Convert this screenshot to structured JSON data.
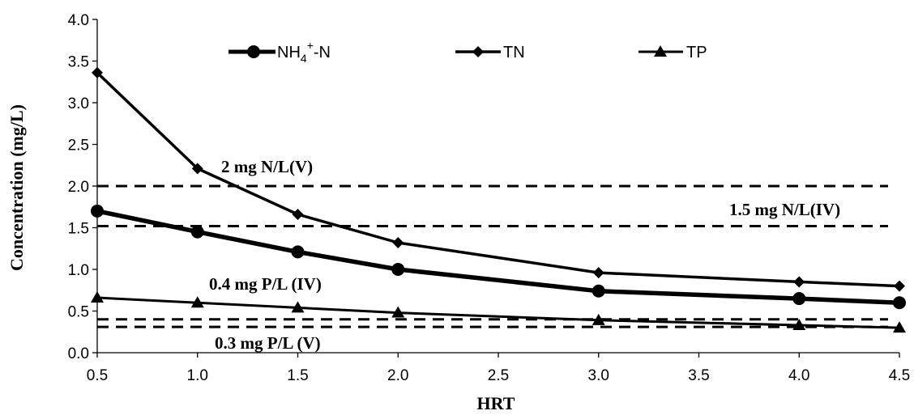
{
  "chart_data": {
    "type": "line",
    "xlabel": "HRT",
    "ylabel": "Concentration (mg/L)",
    "xlim": [
      0.5,
      4.5
    ],
    "ylim": [
      0.0,
      4.0
    ],
    "x_ticks": [
      "0.5",
      "1.0",
      "1.5",
      "2.0",
      "2.5",
      "3.0",
      "3.5",
      "4.0",
      "4.5"
    ],
    "y_ticks": [
      "0.0",
      "0.5",
      "1.0",
      "1.5",
      "2.0",
      "2.5",
      "3.0",
      "3.5",
      "4.0"
    ],
    "grid": false,
    "legend_position": "top",
    "series": [
      {
        "key": "nh4",
        "name": "NH4+-N",
        "marker": "circle",
        "line_weight": "thick",
        "x": [
          0.5,
          1.0,
          1.5,
          2.0,
          3.0,
          4.0,
          4.5
        ],
        "y": [
          1.7,
          1.45,
          1.21,
          1.0,
          0.74,
          0.65,
          0.6
        ]
      },
      {
        "key": "tn",
        "name": "TN",
        "marker": "diamond",
        "line_weight": "medium",
        "x": [
          0.5,
          1.0,
          1.5,
          2.0,
          3.0,
          4.0,
          4.5
        ],
        "y": [
          3.36,
          2.21,
          1.66,
          1.32,
          0.96,
          0.85,
          0.8
        ]
      },
      {
        "key": "tp",
        "name": "TP",
        "marker": "triangle",
        "line_weight": "thin",
        "x": [
          0.5,
          1.0,
          1.5,
          2.0,
          3.0,
          4.0,
          4.5
        ],
        "y": [
          0.66,
          0.6,
          0.54,
          0.48,
          0.39,
          0.33,
          0.3
        ]
      }
    ],
    "reference_lines": [
      {
        "key": "n-v",
        "y": 2.0,
        "label": "2 mg N/L(V)"
      },
      {
        "key": "n-iv",
        "y": 1.52,
        "label": "1.5 mg N/L(IV)"
      },
      {
        "key": "p-iv",
        "y": 0.4,
        "label": "0.4 mg P/L (IV)"
      },
      {
        "key": "p-v",
        "y": 0.31,
        "label": "0.3 mg P/L (V)"
      }
    ],
    "legend": {
      "nh4": {
        "main": "NH",
        "sub": "4",
        "sup": "+",
        "tail": "-N"
      },
      "tn": {
        "main": "TN"
      },
      "tp": {
        "main": "TP"
      }
    }
  }
}
